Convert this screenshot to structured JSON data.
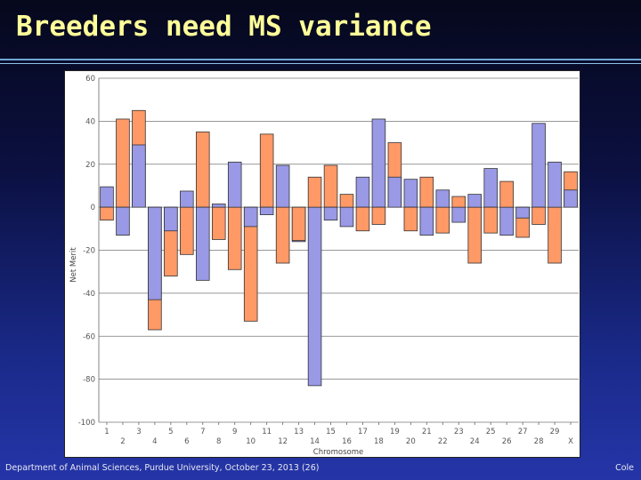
{
  "slide": {
    "title": "Breeders need MS variance",
    "footer_left": "Department of Animal Sciences, Purdue University, October 23, 2013 (26)",
    "footer_right": "Cole"
  },
  "colors": {
    "series_blue": "#9999e6",
    "series_orange": "#ff9966",
    "title_text": "#ffff99"
  },
  "chart_data": {
    "type": "bar",
    "title": "",
    "xlabel": "Chromosome",
    "ylabel": "Net Merit",
    "ylim": [
      -100,
      60
    ],
    "yticks": [
      60,
      40,
      20,
      0,
      -20,
      -40,
      -60,
      -80,
      -100
    ],
    "grid": true,
    "categories": [
      "1",
      "2",
      "3",
      "4",
      "5",
      "6",
      "7",
      "8",
      "9",
      "10",
      "11",
      "12",
      "13",
      "14",
      "15",
      "16",
      "17",
      "18",
      "19",
      "20",
      "21",
      "22",
      "23",
      "24",
      "25",
      "26",
      "27",
      "28",
      "29",
      "X"
    ],
    "category_labels_row1": [
      "1",
      "3",
      "5",
      "7",
      "9",
      "11",
      "13",
      "15",
      "17",
      "19",
      "21",
      "23",
      "25",
      "27",
      "29"
    ],
    "category_labels_row2": [
      "2",
      "4",
      "6",
      "8",
      "10",
      "12",
      "14",
      "16",
      "18",
      "20",
      "22",
      "24",
      "26",
      "28",
      "X"
    ],
    "series": [
      {
        "color": "#9999e6",
        "values": [
          9.5,
          -13,
          29,
          -43,
          -11,
          7.5,
          -34,
          1.5,
          21,
          -9,
          -3.5,
          19.5,
          -16,
          -83,
          -6,
          -9,
          14,
          41,
          14,
          13,
          -13,
          8,
          -7,
          6,
          18,
          -13,
          -5,
          39,
          21,
          8
        ]
      },
      {
        "color": "#ff9966",
        "values": [
          -6,
          41,
          45,
          -57,
          -32,
          -22,
          35,
          -15,
          -29,
          -53,
          34,
          -26,
          -15.5,
          14,
          19.5,
          6,
          -11,
          -8,
          30,
          -11,
          14,
          -12,
          5,
          -26,
          -12,
          12,
          -14,
          -8,
          -26,
          16.5
        ]
      }
    ],
    "series_layout": "overlaid, shorter bar drawn in front"
  }
}
